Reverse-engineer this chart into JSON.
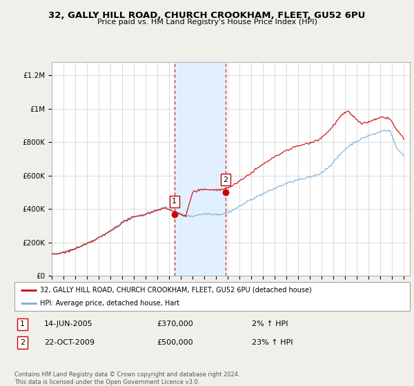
{
  "title": "32, GALLY HILL ROAD, CHURCH CROOKHAM, FLEET, GU52 6PU",
  "subtitle": "Price paid vs. HM Land Registry's House Price Index (HPI)",
  "ylabel_ticks": [
    0,
    200000,
    400000,
    600000,
    800000,
    1000000,
    1200000
  ],
  "ylabel_labels": [
    "£0",
    "£200K",
    "£400K",
    "£600K",
    "£800K",
    "£1M",
    "£1.2M"
  ],
  "xlim": [
    1995.0,
    2025.5
  ],
  "ylim": [
    0,
    1280000
  ],
  "transaction1_x": 2005.45,
  "transaction1_y": 370000,
  "transaction2_x": 2009.81,
  "transaction2_y": 500000,
  "annotation1_num": "1",
  "annotation1_date": "14-JUN-2005",
  "annotation1_price": "£370,000",
  "annotation1_hpi": "2% ↑ HPI",
  "annotation2_num": "2",
  "annotation2_date": "22-OCT-2009",
  "annotation2_price": "£500,000",
  "annotation2_hpi": "23% ↑ HPI",
  "legend_line1": "32, GALLY HILL ROAD, CHURCH CROOKHAM, FLEET, GU52 6PU (detached house)",
  "legend_line2": "HPI: Average price, detached house, Hart",
  "footer": "Contains HM Land Registry data © Crown copyright and database right 2024.\nThis data is licensed under the Open Government Licence v3.0.",
  "line_color_price": "#cc0000",
  "line_color_hpi": "#7aaed4",
  "shade_color": "#ddeeff",
  "dashed_color": "#cc0000",
  "background_color": "#f0f0eb",
  "plot_background": "#ffffff",
  "grid_color": "#cccccc"
}
